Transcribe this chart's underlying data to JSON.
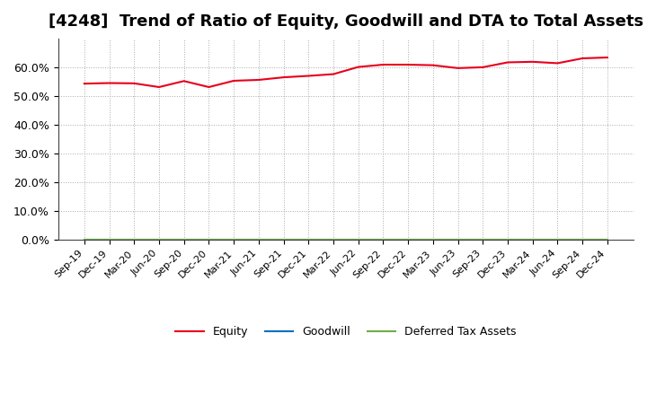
{
  "title": "[4248]  Trend of Ratio of Equity, Goodwill and DTA to Total Assets",
  "x_labels": [
    "Sep-19",
    "Dec-19",
    "Mar-20",
    "Jun-20",
    "Sep-20",
    "Dec-20",
    "Mar-21",
    "Jun-21",
    "Sep-21",
    "Dec-21",
    "Mar-22",
    "Jun-22",
    "Sep-22",
    "Dec-22",
    "Mar-23",
    "Jun-23",
    "Sep-23",
    "Dec-23",
    "Mar-24",
    "Jun-24",
    "Sep-24",
    "Dec-24"
  ],
  "equity": [
    0.543,
    0.545,
    0.544,
    0.531,
    0.552,
    0.531,
    0.553,
    0.556,
    0.565,
    0.57,
    0.576,
    0.601,
    0.609,
    0.609,
    0.607,
    0.597,
    0.6,
    0.617,
    0.619,
    0.614,
    0.631,
    0.634
  ],
  "goodwill": [
    0.0,
    0.0,
    0.0,
    0.0,
    0.0,
    0.0,
    0.0,
    0.0,
    0.0,
    0.0,
    0.0,
    0.0,
    0.0,
    0.0,
    0.0,
    0.0,
    0.0,
    0.0,
    0.0,
    0.0,
    0.0,
    0.0
  ],
  "dta": [
    0.0,
    0.0,
    0.0,
    0.0,
    0.0,
    0.0,
    0.0,
    0.0,
    0.0,
    0.0,
    0.0,
    0.0,
    0.0,
    0.0,
    0.0,
    0.0,
    0.0,
    0.0,
    0.0,
    0.0,
    0.0,
    0.0
  ],
  "equity_color": "#e8001c",
  "goodwill_color": "#0070c0",
  "dta_color": "#70ad47",
  "background_color": "#ffffff",
  "grid_color": "#aaaaaa",
  "title_fontsize": 13,
  "ylim": [
    0.0,
    0.7
  ],
  "yticks": [
    0.0,
    0.1,
    0.2,
    0.3,
    0.4,
    0.5,
    0.6
  ],
  "legend_labels": [
    "Equity",
    "Goodwill",
    "Deferred Tax Assets"
  ]
}
